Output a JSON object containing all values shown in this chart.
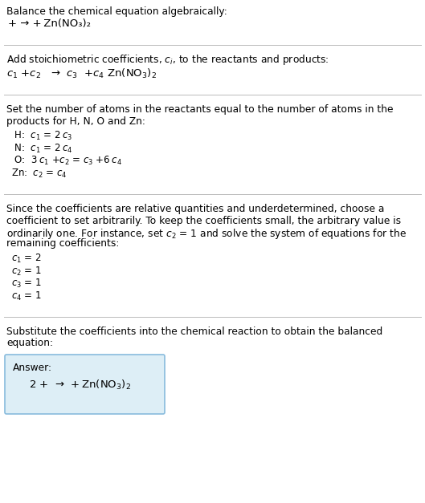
{
  "title_line1": "Balance the chemical equation algebraically:",
  "title_line2": "+ → + Zn(NO₃)₂",
  "section2_header": "Add stoichiometric coefficients, $c_i$, to the reactants and products:",
  "section2_eq": "$c_1$ +$c_2$   →  $c_3$  +$c_4$ Zn(NO$_3$)$_2$",
  "section3_header_1": "Set the number of atoms in the reactants equal to the number of atoms in the",
  "section3_header_2": "products for H, N, O and Zn:",
  "section3_lines": [
    " H:  $c_1$ = 2 $c_3$",
    " N:  $c_1$ = 2 $c_4$",
    " O:  3 $c_1$ +$c_2$ = $c_3$ +6 $c_4$",
    "Zn:  $c_2$ = $c_4$"
  ],
  "section4_header_1": "Since the coefficients are relative quantities and underdetermined, choose a",
  "section4_header_2": "coefficient to set arbitrarily. To keep the coefficients small, the arbitrary value is",
  "section4_header_3": "ordinarily one. For instance, set $c_2$ = 1 and solve the system of equations for the",
  "section4_header_4": "remaining coefficients:",
  "section4_lines": [
    "$c_1$ = 2",
    "$c_2$ = 1",
    "$c_3$ = 1",
    "$c_4$ = 1"
  ],
  "section5_header_1": "Substitute the coefficients into the chemical reaction to obtain the balanced",
  "section5_header_2": "equation:",
  "answer_label": "Answer:",
  "answer_eq": "2 +  →  + Zn(NO$_3$)$_2$",
  "bg_color": "#ffffff",
  "text_color": "#000000",
  "separator_color": "#bbbbbb",
  "answer_box_facecolor": "#ddeef6",
  "answer_box_edgecolor": "#88bbdd"
}
